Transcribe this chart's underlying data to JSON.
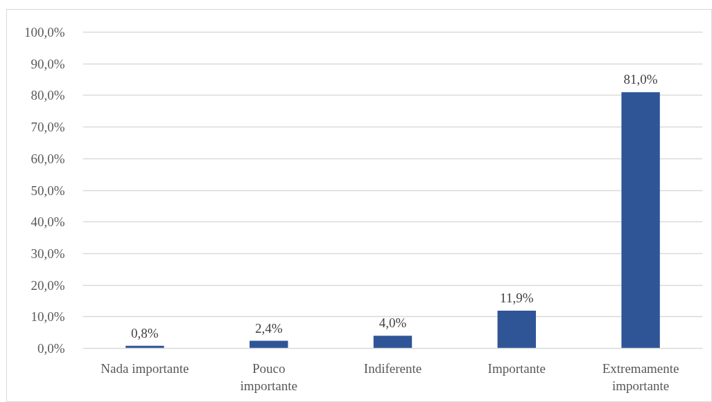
{
  "chart_data": {
    "type": "bar",
    "categories": [
      "Nada importante",
      "Pouco importante",
      "Indiferente",
      "Importante",
      "Extremamente importante"
    ],
    "values": [
      0.8,
      2.4,
      4.0,
      11.9,
      81.0
    ],
    "color": "#2f5597",
    "value_labels": [
      "0,8%",
      "2,4%",
      "4,0%",
      "11,9%",
      "81,0%"
    ],
    "ylim": [
      0,
      100
    ],
    "yticks": [
      {
        "value": 0,
        "label": "0,0%"
      },
      {
        "value": 10,
        "label": "10,0%"
      },
      {
        "value": 20,
        "label": "20,0%"
      },
      {
        "value": 30,
        "label": "30,0%"
      },
      {
        "value": 40,
        "label": "40,0%"
      },
      {
        "value": 50,
        "label": "50,0%"
      },
      {
        "value": 60,
        "label": "60,0%"
      },
      {
        "value": 70,
        "label": "70,0%"
      },
      {
        "value": 80,
        "label": "80,0%"
      },
      {
        "value": 90,
        "label": "90,0%"
      },
      {
        "value": 100,
        "label": "100,0%"
      }
    ],
    "grid": "y"
  }
}
